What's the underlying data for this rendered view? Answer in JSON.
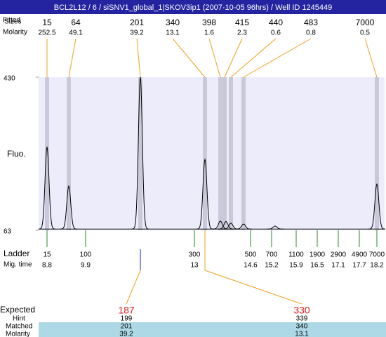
{
  "chart_data": {
    "type": "electropherogram",
    "title": "BCL2L12 / 6 / siSNV1_global_1|SKOV3ip1 (2007-10-05 96hrs) / Well ID 1245449",
    "y_label": "Fluo.",
    "ylim": [
      63,
      430
    ],
    "yticks": [
      63,
      430
    ],
    "xlim": [
      8.56,
      18.42
    ],
    "peak_rows": {
      "fitted_label": "Fitted",
      "sizes_label": "Sizes",
      "molarity_label": "Molarity"
    },
    "peaks": {
      "sizes": [
        15,
        64,
        201,
        340,
        398,
        415,
        440,
        483,
        7000
      ],
      "molarity": [
        252.5,
        49.1,
        39.2,
        13.1,
        1.6,
        2.3,
        0.6,
        0.8,
        0.5
      ],
      "mig_time": [
        8.8,
        9.42,
        11.46,
        13.3,
        13.74,
        13.86,
        14.04,
        14.4,
        18.2
      ]
    },
    "trace": {
      "baseline": 66,
      "mig_time": [
        8.8,
        9.42,
        11.46,
        13.3,
        13.74,
        13.9,
        14.04,
        14.4,
        15.3,
        18.2
      ],
      "height": [
        262,
        169,
        430,
        233,
        85,
        84,
        80,
        78,
        73,
        174
      ]
    },
    "ladder": {
      "label": "Ladder",
      "mig_label": "Mig. time",
      "sizes": [
        15,
        100,
        300,
        500,
        700,
        1100,
        1900,
        2900,
        4900,
        7000
      ],
      "mig_time": [
        8.8,
        9.9,
        13,
        14.6,
        15.2,
        15.9,
        16.5,
        17.1,
        17.7,
        18.2
      ]
    },
    "expected": {
      "label": "Expected",
      "hint_label": "Hint",
      "matched_label": "Matched",
      "molarity_label": "Molarity",
      "expected": [
        187,
        330
      ],
      "hint": [
        199,
        339
      ],
      "matched": [
        201,
        340
      ],
      "molarity": [
        39.2,
        13.1
      ]
    }
  }
}
